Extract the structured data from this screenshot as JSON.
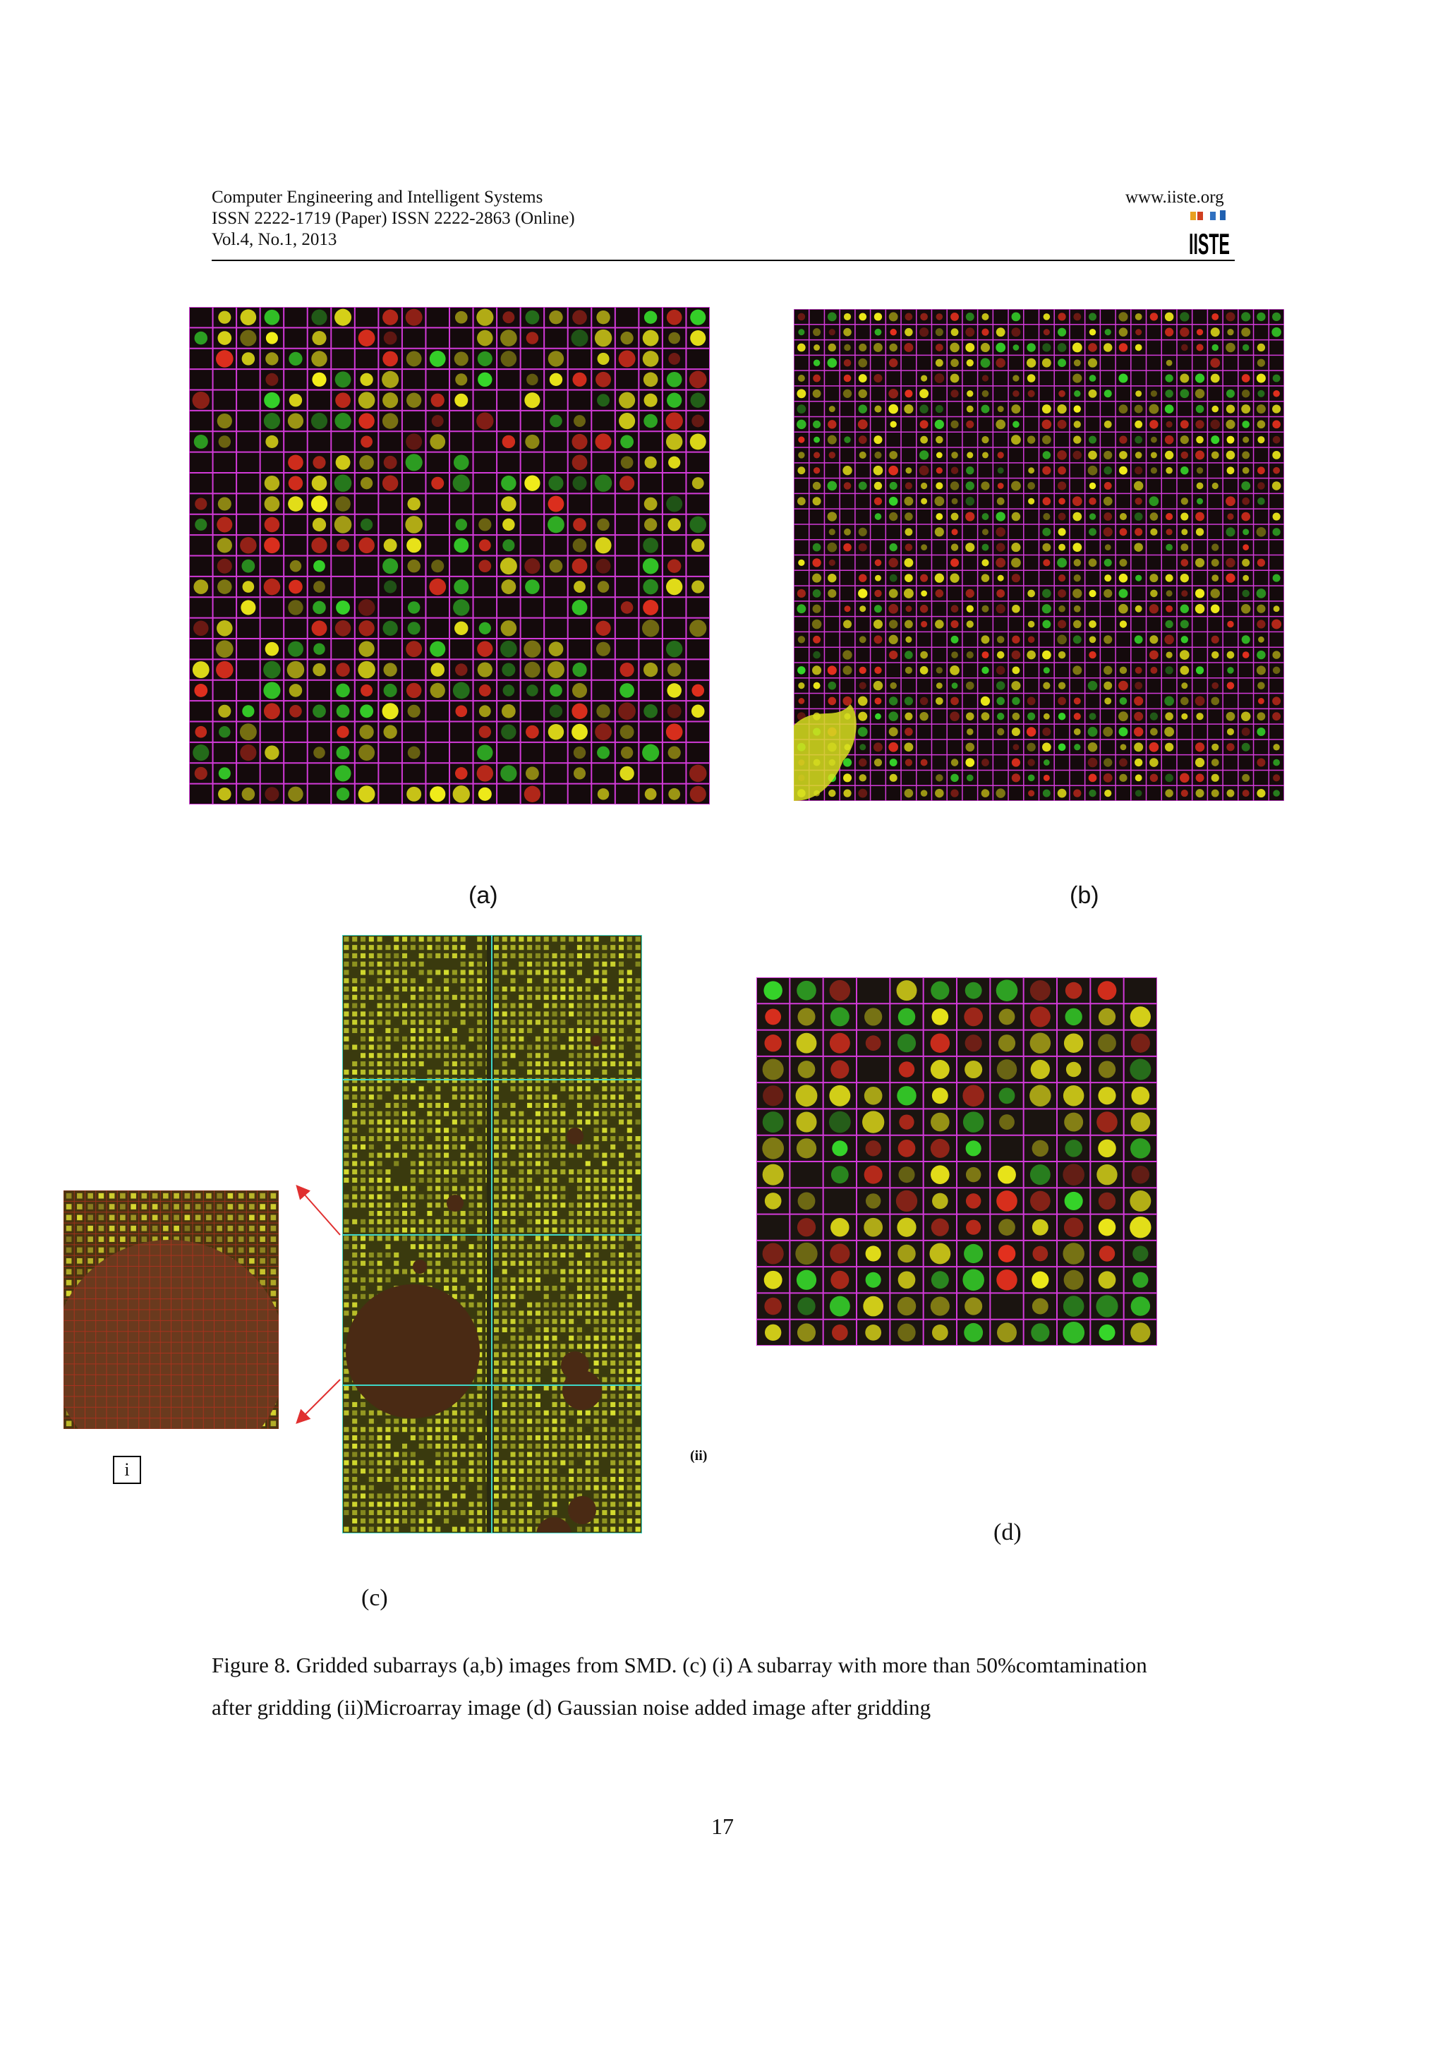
{
  "header": {
    "journal": "Computer Engineering and Intelligent Systems",
    "issn": "ISSN 2222-1719 (Paper) ISSN 2222-2863 (Online)",
    "volume": "Vol.4, No.1, 2013",
    "website": "www.iiste.org",
    "logo_text": "IISTE"
  },
  "figure": {
    "label_a": "(a)",
    "label_b": "(b)",
    "label_c": "(c)",
    "label_d": "(d)",
    "label_i": "i",
    "label_ii": "(ii)",
    "caption_line1": "Figure 8. Gridded subarrays (a,b) images from SMD. (c) (i) A subarray with more than 50%comtamination",
    "caption_line2": "after gridding (ii)Microarray image (d) Gaussian noise added   image after gridding"
  },
  "page_number": "17",
  "colors": {
    "grid": "#d23ad8",
    "spot_yellow": "#f2ee1a",
    "spot_green": "#36d62a",
    "spot_red": "#e2301e",
    "background_dark": "#140a0c",
    "arrow": "#e03030",
    "cyan_grid": "#3fd6c6"
  }
}
